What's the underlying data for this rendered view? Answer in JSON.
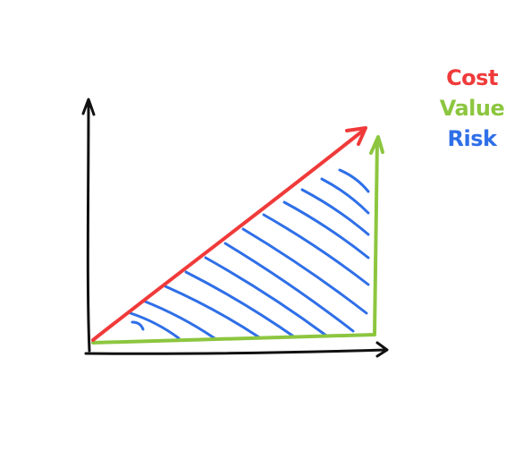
{
  "legend": {
    "items": [
      {
        "label": "Cost",
        "color": "#f03a3a"
      },
      {
        "label": "Value",
        "color": "#8cc63f"
      },
      {
        "label": "Risk",
        "color": "#2f6fe8"
      }
    ]
  },
  "colors": {
    "axis": "#111111",
    "cost": "#f03a3a",
    "value": "#8cc63f",
    "risk": "#2f6fe8"
  }
}
